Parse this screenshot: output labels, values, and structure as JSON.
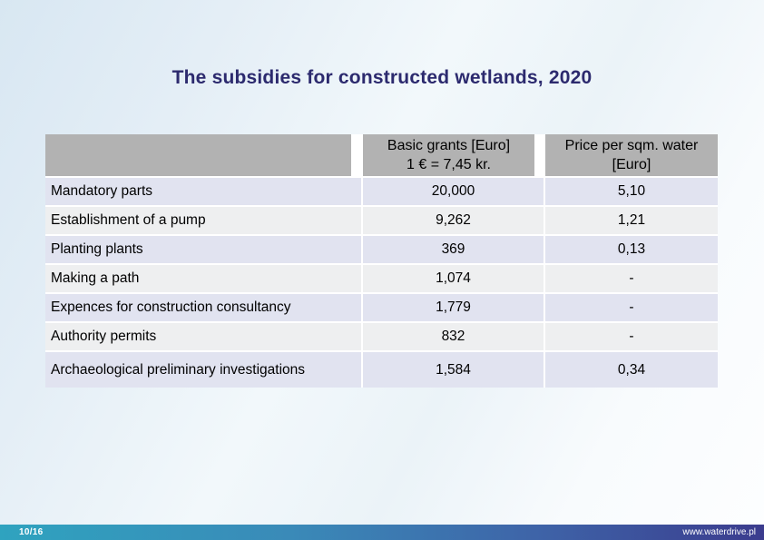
{
  "slide": {
    "title": "The subsidies for constructed wetlands, 2020"
  },
  "table": {
    "header": {
      "col_item": "",
      "col_basic_grants": "Basic grants [Euro]\n1 € = 7,45 kr.",
      "col_price_per_sqm": "Price per sqm. water\n[Euro]"
    },
    "rows": [
      {
        "label": "Mandatory parts",
        "basic_grant": "20,000",
        "price_per_sqm": "5,10"
      },
      {
        "label": "Establishment of a pump",
        "basic_grant": "9,262",
        "price_per_sqm": "1,21"
      },
      {
        "label": "Planting plants",
        "basic_grant": "369",
        "price_per_sqm": "0,13"
      },
      {
        "label": "Making a path",
        "basic_grant": "1,074",
        "price_per_sqm": "-"
      },
      {
        "label": "Expences for construction consultancy",
        "basic_grant": "1,779",
        "price_per_sqm": "-"
      },
      {
        "label": "Authority permits",
        "basic_grant": "832",
        "price_per_sqm": "-"
      },
      {
        "label": "Archaeological preliminary investigations",
        "basic_grant": "1,584",
        "price_per_sqm": "0,34"
      }
    ]
  },
  "footer": {
    "page_number": "10/16",
    "website": "www.waterdrive.pl"
  },
  "colors": {
    "title": "#2c2a6e",
    "header_cell_bg": "#b2b2b2",
    "row_odd_bg": "#e1e3f0",
    "row_even_bg": "#eeeff0",
    "footer_gradient_left": "#2fa3bf",
    "footer_gradient_right": "#3b3c8e",
    "background_top_left": "#d8e7f2",
    "background_bottom_right": "#fdfeff"
  }
}
